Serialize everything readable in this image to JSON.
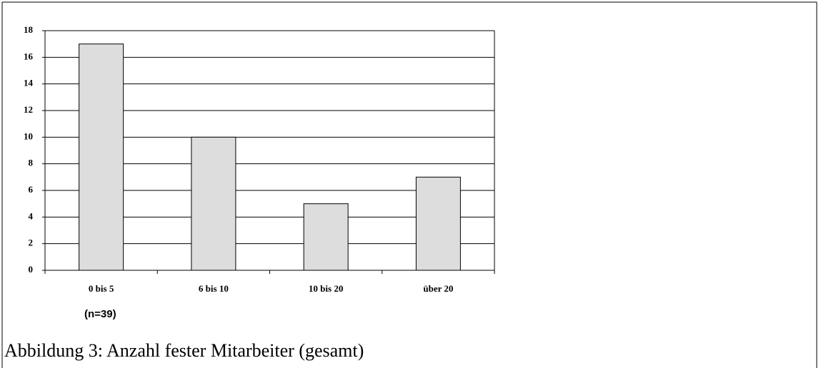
{
  "chart_data": {
    "type": "bar",
    "categories": [
      "0 bis 5",
      "6 bis 10",
      "10 bis 20",
      "über 20"
    ],
    "values": [
      17,
      10,
      5,
      7
    ],
    "color": "#dddddd",
    "ylim": [
      0,
      18
    ],
    "yticks": [
      0,
      2,
      4,
      6,
      8,
      10,
      12,
      14,
      16,
      18
    ],
    "grid": true,
    "annotation": "(n=39)",
    "caption": "Abbildung 3: Anzahl fester Mitarbeiter (gesamt)"
  }
}
